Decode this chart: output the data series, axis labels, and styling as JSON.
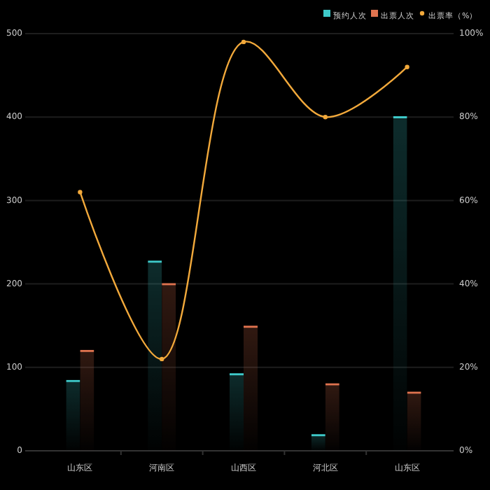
{
  "chart_data": {
    "type": "bar",
    "categories": [
      "山东区",
      "河南区",
      "山西区",
      "河北区",
      "山东区"
    ],
    "series": [
      {
        "name": "预约人次",
        "color": "#3ec9c9",
        "values": [
          85,
          228,
          93,
          20,
          401
        ]
      },
      {
        "name": "出票人次",
        "color": "#e0734f",
        "values": [
          121,
          201,
          150,
          81,
          71
        ]
      },
      {
        "name": "出票率（%）",
        "type": "line",
        "axis": "y2",
        "color": "#f2a93b",
        "values": [
          62,
          22,
          98,
          80,
          92
        ]
      }
    ],
    "ylim": [
      0,
      500
    ],
    "yticks": [
      0,
      100,
      200,
      300,
      400,
      500
    ],
    "y2lim": [
      0,
      100
    ],
    "y2ticks": [
      {
        "value": 0,
        "label": "0%"
      },
      {
        "value": 20,
        "label": "20%"
      },
      {
        "value": 40,
        "label": "40%"
      },
      {
        "value": 60,
        "label": "60%"
      },
      {
        "value": 80,
        "label": "80%"
      },
      {
        "value": 100,
        "label": "100%"
      }
    ],
    "grid": "y",
    "legend": "top right",
    "marker": "circle"
  }
}
